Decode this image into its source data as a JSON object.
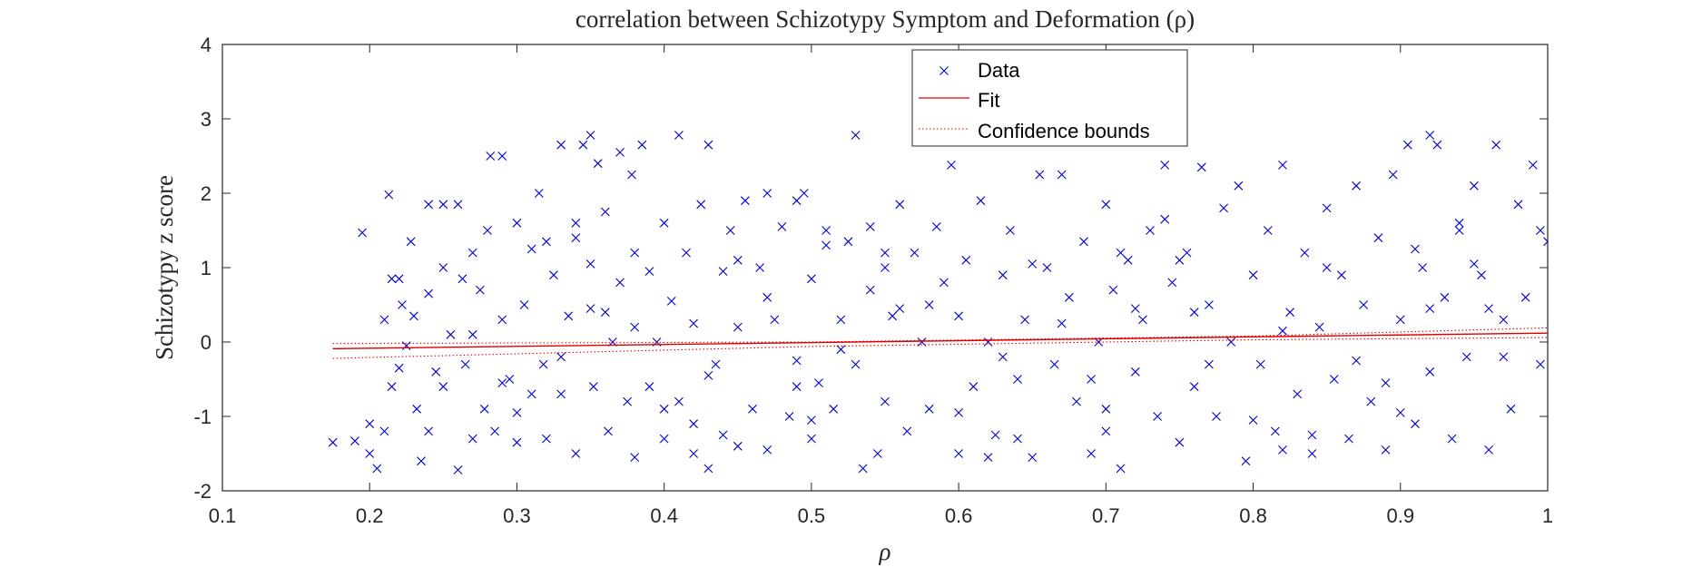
{
  "chart_data": {
    "type": "scatter",
    "title": "correlation between Schizotypy Symptom and Deformation (ρ)",
    "xlabel": "ρ",
    "ylabel": "Schizotypy z score",
    "xlim": [
      0.1,
      1.0
    ],
    "ylim": [
      -2,
      4
    ],
    "xticks": [
      0.1,
      0.2,
      0.3,
      0.4,
      0.5,
      0.6,
      0.7,
      0.8,
      0.9,
      1.0
    ],
    "xtick_labels": [
      "0.1",
      "0.2",
      "0.3",
      "0.4",
      "0.5",
      "0.6",
      "0.7",
      "0.8",
      "0.9",
      "1"
    ],
    "yticks": [
      -2,
      -1,
      0,
      1,
      2,
      3,
      4
    ],
    "ytick_labels": [
      "-2",
      "-1",
      "0",
      "1",
      "2",
      "3",
      "4"
    ],
    "grid": false,
    "legend_position": "top-center",
    "colors": {
      "data": "#0000cc",
      "fit": "#dd0000",
      "bounds": "#dd0000"
    },
    "series": [
      {
        "name": "Data",
        "marker": "x",
        "points": [
          [
            0.175,
            -1.35
          ],
          [
            0.19,
            -1.33
          ],
          [
            0.195,
            1.47
          ],
          [
            0.2,
            -1.1
          ],
          [
            0.2,
            -1.5
          ],
          [
            0.205,
            -1.7
          ],
          [
            0.21,
            -1.2
          ],
          [
            0.21,
            0.3
          ],
          [
            0.213,
            1.98
          ],
          [
            0.215,
            0.85
          ],
          [
            0.215,
            -0.6
          ],
          [
            0.22,
            0.85
          ],
          [
            0.222,
            0.5
          ],
          [
            0.225,
            -0.05
          ],
          [
            0.228,
            1.35
          ],
          [
            0.23,
            0.35
          ],
          [
            0.232,
            -0.9
          ],
          [
            0.235,
            -1.6
          ],
          [
            0.24,
            0.65
          ],
          [
            0.24,
            1.85
          ],
          [
            0.245,
            -0.4
          ],
          [
            0.25,
            1.85
          ],
          [
            0.25,
            -0.6
          ],
          [
            0.255,
            0.1
          ],
          [
            0.26,
            -1.72
          ],
          [
            0.26,
            1.85
          ],
          [
            0.263,
            0.85
          ],
          [
            0.265,
            -0.3
          ],
          [
            0.27,
            1.2
          ],
          [
            0.27,
            -1.3
          ],
          [
            0.275,
            0.7
          ],
          [
            0.278,
            -0.9
          ],
          [
            0.28,
            1.5
          ],
          [
            0.282,
            2.5
          ],
          [
            0.285,
            -1.2
          ],
          [
            0.29,
            2.5
          ],
          [
            0.29,
            0.3
          ],
          [
            0.295,
            -0.5
          ],
          [
            0.3,
            1.6
          ],
          [
            0.3,
            -1.35
          ],
          [
            0.305,
            0.5
          ],
          [
            0.31,
            -0.7
          ],
          [
            0.315,
            2.0
          ],
          [
            0.318,
            -0.3
          ],
          [
            0.32,
            1.35
          ],
          [
            0.32,
            -1.3
          ],
          [
            0.325,
            0.9
          ],
          [
            0.33,
            2.65
          ],
          [
            0.33,
            -0.7
          ],
          [
            0.335,
            0.35
          ],
          [
            0.34,
            1.4
          ],
          [
            0.34,
            -1.5
          ],
          [
            0.345,
            2.65
          ],
          [
            0.35,
            2.78
          ],
          [
            0.35,
            0.45
          ],
          [
            0.352,
            -0.6
          ],
          [
            0.355,
            2.4
          ],
          [
            0.36,
            1.75
          ],
          [
            0.362,
            -1.2
          ],
          [
            0.365,
            0.0
          ],
          [
            0.37,
            2.55
          ],
          [
            0.37,
            0.8
          ],
          [
            0.375,
            -0.8
          ],
          [
            0.378,
            2.25
          ],
          [
            0.38,
            1.2
          ],
          [
            0.38,
            -1.55
          ],
          [
            0.385,
            2.65
          ],
          [
            0.39,
            0.95
          ],
          [
            0.39,
            -0.6
          ],
          [
            0.395,
            0.0
          ],
          [
            0.4,
            1.6
          ],
          [
            0.4,
            -1.3
          ],
          [
            0.405,
            0.55
          ],
          [
            0.41,
            2.78
          ],
          [
            0.41,
            -0.8
          ],
          [
            0.415,
            1.2
          ],
          [
            0.42,
            -1.1
          ],
          [
            0.42,
            0.25
          ],
          [
            0.425,
            1.85
          ],
          [
            0.43,
            2.65
          ],
          [
            0.43,
            -1.7
          ],
          [
            0.435,
            -0.3
          ],
          [
            0.44,
            0.95
          ],
          [
            0.445,
            1.5
          ],
          [
            0.45,
            -1.4
          ],
          [
            0.45,
            0.2
          ],
          [
            0.455,
            1.9
          ],
          [
            0.46,
            -0.9
          ],
          [
            0.465,
            1.0
          ],
          [
            0.47,
            2.0
          ],
          [
            0.47,
            -1.45
          ],
          [
            0.475,
            0.3
          ],
          [
            0.48,
            1.55
          ],
          [
            0.485,
            -1.0
          ],
          [
            0.49,
            1.9
          ],
          [
            0.49,
            -0.25
          ],
          [
            0.495,
            2.0
          ],
          [
            0.5,
            0.85
          ],
          [
            0.5,
            -1.3
          ],
          [
            0.505,
            -0.55
          ],
          [
            0.51,
            1.5
          ],
          [
            0.515,
            -0.9
          ],
          [
            0.52,
            0.3
          ],
          [
            0.525,
            1.35
          ],
          [
            0.53,
            2.78
          ],
          [
            0.53,
            -0.3
          ],
          [
            0.535,
            -1.7
          ],
          [
            0.54,
            0.7
          ],
          [
            0.545,
            -1.5
          ],
          [
            0.55,
            1.2
          ],
          [
            0.55,
            -0.8
          ],
          [
            0.555,
            0.35
          ],
          [
            0.56,
            1.85
          ],
          [
            0.565,
            -1.2
          ],
          [
            0.57,
            1.2
          ],
          [
            0.575,
            0.0
          ],
          [
            0.58,
            -0.9
          ],
          [
            0.585,
            1.55
          ],
          [
            0.59,
            0.8
          ],
          [
            0.595,
            2.38
          ],
          [
            0.6,
            -1.5
          ],
          [
            0.6,
            0.35
          ],
          [
            0.605,
            1.1
          ],
          [
            0.61,
            -0.6
          ],
          [
            0.615,
            1.9
          ],
          [
            0.62,
            0.0
          ],
          [
            0.625,
            -1.25
          ],
          [
            0.63,
            0.9
          ],
          [
            0.635,
            1.5
          ],
          [
            0.64,
            -0.5
          ],
          [
            0.645,
            0.3
          ],
          [
            0.65,
            -1.55
          ],
          [
            0.655,
            2.25
          ],
          [
            0.66,
            1.0
          ],
          [
            0.665,
            -0.3
          ],
          [
            0.67,
            2.25
          ],
          [
            0.675,
            0.6
          ],
          [
            0.68,
            -0.8
          ],
          [
            0.685,
            1.35
          ],
          [
            0.69,
            -1.5
          ],
          [
            0.695,
            0.0
          ],
          [
            0.7,
            1.85
          ],
          [
            0.7,
            -1.2
          ],
          [
            0.705,
            0.7
          ],
          [
            0.71,
            -1.7
          ],
          [
            0.715,
            1.1
          ],
          [
            0.72,
            -0.4
          ],
          [
            0.725,
            0.3
          ],
          [
            0.73,
            1.5
          ],
          [
            0.735,
            -1.0
          ],
          [
            0.74,
            2.38
          ],
          [
            0.745,
            0.8
          ],
          [
            0.75,
            -1.35
          ],
          [
            0.755,
            1.2
          ],
          [
            0.76,
            -0.6
          ],
          [
            0.765,
            2.35
          ],
          [
            0.77,
            0.5
          ],
          [
            0.775,
            -1.0
          ],
          [
            0.78,
            1.8
          ],
          [
            0.785,
            0.0
          ],
          [
            0.79,
            2.1
          ],
          [
            0.795,
            -1.6
          ],
          [
            0.8,
            0.9
          ],
          [
            0.805,
            -0.3
          ],
          [
            0.81,
            1.5
          ],
          [
            0.815,
            -1.2
          ],
          [
            0.82,
            2.38
          ],
          [
            0.825,
            0.4
          ],
          [
            0.83,
            -0.7
          ],
          [
            0.835,
            1.2
          ],
          [
            0.84,
            -1.5
          ],
          [
            0.845,
            0.2
          ],
          [
            0.85,
            1.8
          ],
          [
            0.855,
            -0.5
          ],
          [
            0.86,
            0.9
          ],
          [
            0.865,
            -1.3
          ],
          [
            0.87,
            2.1
          ],
          [
            0.875,
            0.5
          ],
          [
            0.88,
            -0.8
          ],
          [
            0.885,
            1.4
          ],
          [
            0.89,
            -1.45
          ],
          [
            0.895,
            2.25
          ],
          [
            0.9,
            0.3
          ],
          [
            0.905,
            2.65
          ],
          [
            0.91,
            -1.1
          ],
          [
            0.915,
            1.0
          ],
          [
            0.92,
            2.78
          ],
          [
            0.92,
            -0.4
          ],
          [
            0.925,
            2.65
          ],
          [
            0.93,
            0.6
          ],
          [
            0.935,
            -1.3
          ],
          [
            0.94,
            1.6
          ],
          [
            0.945,
            -0.2
          ],
          [
            0.95,
            2.1
          ],
          [
            0.955,
            0.9
          ],
          [
            0.96,
            -1.45
          ],
          [
            0.965,
            2.65
          ],
          [
            0.97,
            0.3
          ],
          [
            0.975,
            -0.9
          ],
          [
            0.98,
            1.85
          ],
          [
            0.985,
            0.6
          ],
          [
            0.99,
            2.38
          ],
          [
            0.995,
            1.5
          ],
          [
            1.0,
            1.35
          ],
          [
            0.995,
            -0.3
          ],
          [
            0.22,
            -0.35
          ],
          [
            0.27,
            0.1
          ],
          [
            0.33,
            -0.2
          ],
          [
            0.38,
            0.2
          ],
          [
            0.43,
            -0.45
          ],
          [
            0.47,
            0.6
          ],
          [
            0.52,
            -0.1
          ],
          [
            0.58,
            0.5
          ],
          [
            0.63,
            -0.2
          ],
          [
            0.67,
            0.25
          ],
          [
            0.72,
            0.45
          ],
          [
            0.77,
            -0.3
          ],
          [
            0.82,
            0.15
          ],
          [
            0.87,
            -0.25
          ],
          [
            0.92,
            0.45
          ],
          [
            0.97,
            -0.2
          ],
          [
            0.3,
            -0.95
          ],
          [
            0.4,
            -0.9
          ],
          [
            0.5,
            -1.05
          ],
          [
            0.6,
            -0.95
          ],
          [
            0.7,
            -0.9
          ],
          [
            0.8,
            -1.05
          ],
          [
            0.9,
            -0.95
          ],
          [
            0.25,
            1.0
          ],
          [
            0.35,
            1.05
          ],
          [
            0.45,
            1.1
          ],
          [
            0.55,
            1.0
          ],
          [
            0.65,
            1.05
          ],
          [
            0.75,
            1.1
          ],
          [
            0.85,
            1.0
          ],
          [
            0.95,
            1.05
          ],
          [
            0.24,
            -1.2
          ],
          [
            0.44,
            -1.25
          ],
          [
            0.64,
            -1.3
          ],
          [
            0.84,
            -1.25
          ],
          [
            0.34,
            1.6
          ],
          [
            0.54,
            1.55
          ],
          [
            0.74,
            1.65
          ],
          [
            0.94,
            1.5
          ],
          [
            0.29,
            -0.55
          ],
          [
            0.49,
            -0.6
          ],
          [
            0.69,
            -0.5
          ],
          [
            0.89,
            -0.55
          ],
          [
            0.36,
            0.4
          ],
          [
            0.56,
            0.45
          ],
          [
            0.76,
            0.4
          ],
          [
            0.96,
            0.45
          ],
          [
            0.42,
            -1.5
          ],
          [
            0.62,
            -1.55
          ],
          [
            0.82,
            -1.45
          ],
          [
            0.31,
            1.25
          ],
          [
            0.51,
            1.3
          ],
          [
            0.71,
            1.2
          ],
          [
            0.91,
            1.25
          ]
        ]
      },
      {
        "name": "Fit",
        "line": "solid",
        "points": [
          [
            0.175,
            -0.09
          ],
          [
            1.0,
            0.12
          ]
        ]
      },
      {
        "name": "Confidence bounds",
        "line": "dotted",
        "upper": [
          [
            0.175,
            -0.02
          ],
          [
            0.5,
            0.0
          ],
          [
            0.8,
            0.08
          ],
          [
            1.0,
            0.19
          ]
        ],
        "lower": [
          [
            0.175,
            -0.22
          ],
          [
            0.5,
            -0.06
          ],
          [
            0.8,
            0.03
          ],
          [
            1.0,
            0.06
          ]
        ]
      }
    ]
  }
}
